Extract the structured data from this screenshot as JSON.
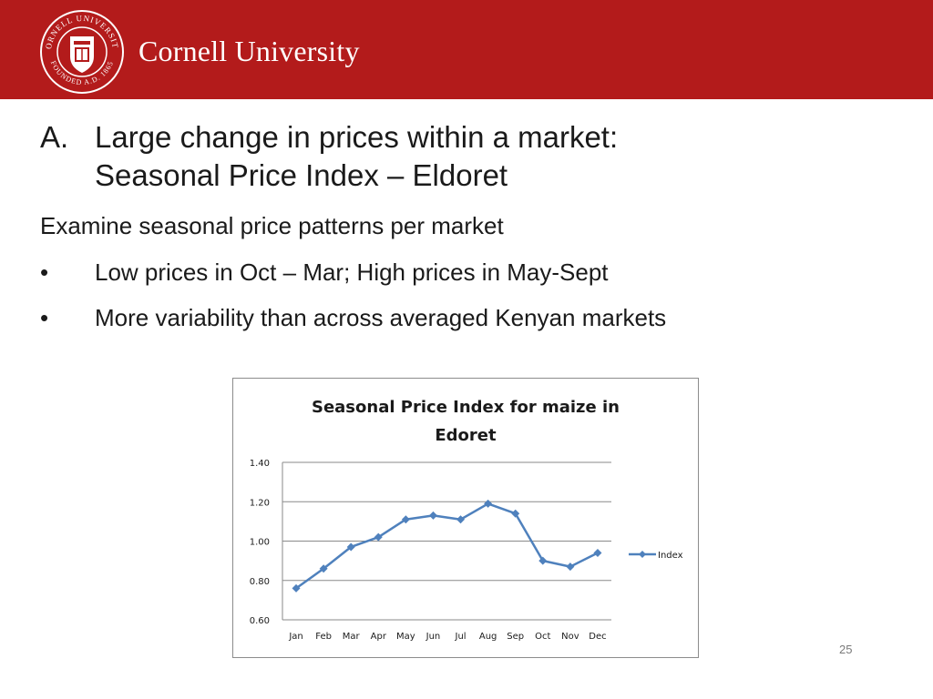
{
  "header": {
    "brand": "Cornell University",
    "seal_text_top": "CORNELL UNIVERSITY",
    "seal_text_bottom": "FOUNDED A.D. 1865"
  },
  "slide": {
    "heading_marker": "A.",
    "heading_line1": "Large change in prices within a market:",
    "heading_line2": "Seasonal Price Index – Eldoret",
    "intro": "Examine seasonal price patterns per market",
    "bullets": [
      {
        "dot": "•",
        "text": "Low prices in Oct – Mar; High prices in May-Sept"
      },
      {
        "dot": "•",
        "text": "More variability than across averaged Kenyan markets"
      }
    ],
    "page_number": "25"
  },
  "colors": {
    "brand_red": "#b31b1b",
    "series": "#4f81bd"
  },
  "chart_data": {
    "type": "line",
    "title_lines": [
      "Seasonal Price Index for maize in",
      "Edoret"
    ],
    "categories": [
      "Jan",
      "Feb",
      "Mar",
      "Apr",
      "May",
      "Jun",
      "Jul",
      "Aug",
      "Sep",
      "Oct",
      "Nov",
      "Dec"
    ],
    "series": [
      {
        "name": "Index",
        "values": [
          0.76,
          0.86,
          0.97,
          1.02,
          1.11,
          1.13,
          1.11,
          1.19,
          1.14,
          0.9,
          0.87,
          0.94
        ]
      }
    ],
    "yticks": [
      "0.60",
      "0.80",
      "1.00",
      "1.20",
      "1.40"
    ],
    "ylim": [
      0.6,
      1.4
    ],
    "grid": true,
    "legend_position": "right",
    "marker": "diamond"
  }
}
